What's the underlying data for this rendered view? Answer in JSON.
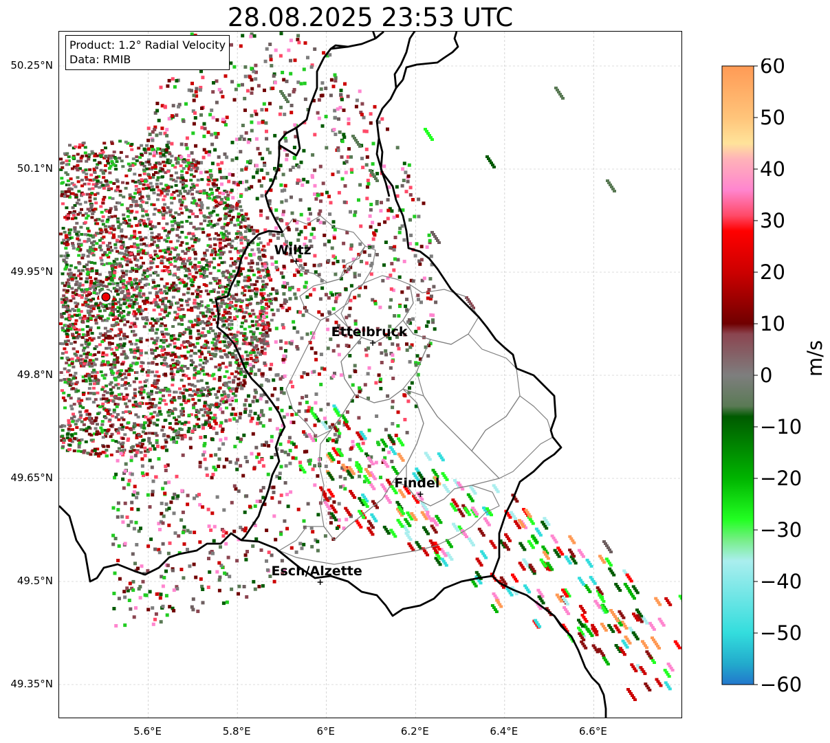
{
  "title": "28.08.2025 23:53 UTC",
  "info": {
    "product": "Product: 1.2° Radial Velocity",
    "data": "Data: RMIB"
  },
  "map": {
    "lon_range": [
      5.4,
      6.8
    ],
    "lat_range": [
      49.3,
      50.3
    ],
    "lat_ticks": [
      {
        "value": 50.25,
        "label": "50.25°N"
      },
      {
        "value": 50.1,
        "label": "50.1°N"
      },
      {
        "value": 49.95,
        "label": "49.95°N"
      },
      {
        "value": 49.8,
        "label": "49.8°N"
      },
      {
        "value": 49.65,
        "label": "49.65°N"
      },
      {
        "value": 49.5,
        "label": "49.5°N"
      },
      {
        "value": 49.35,
        "label": "49.35°N"
      }
    ],
    "lon_ticks": [
      {
        "value": 5.6,
        "label": "5.6°E"
      },
      {
        "value": 5.8,
        "label": "5.8°E"
      },
      {
        "value": 6.0,
        "label": "6°E"
      },
      {
        "value": 6.2,
        "label": "6.2°E"
      },
      {
        "value": 6.4,
        "label": "6.4°E"
      },
      {
        "value": 6.6,
        "label": "6.6°E"
      }
    ],
    "gridlines": true,
    "radar_site": {
      "lon": 5.505,
      "lat": 49.914
    },
    "cities": [
      {
        "name": "Wiltz",
        "lon": 5.932,
        "lat": 49.966
      },
      {
        "name": "Ettelbruck",
        "lon": 6.104,
        "lat": 49.847
      },
      {
        "name": "Findel",
        "lon": 6.211,
        "lat": 49.627
      },
      {
        "name": "Esch/Alzette",
        "lon": 5.986,
        "lat": 49.499
      }
    ]
  },
  "colorbar": {
    "unit": "m/s",
    "min": -60,
    "max": 60,
    "ticks": [
      60,
      50,
      40,
      30,
      20,
      10,
      0,
      -10,
      -20,
      -30,
      -40,
      -50,
      -60
    ],
    "tick_labels": [
      "60",
      "50",
      "40",
      "30",
      "20",
      "10",
      "0",
      "−10",
      "−20",
      "−30",
      "−40",
      "−50",
      "−60"
    ],
    "stops": [
      {
        "v": 60,
        "color": "#ff9a55"
      },
      {
        "v": 50,
        "color": "#ffc47a"
      },
      {
        "v": 45,
        "color": "#ffe39a"
      },
      {
        "v": 42,
        "color": "#ffb3b8"
      },
      {
        "v": 36,
        "color": "#ff86cf"
      },
      {
        "v": 31,
        "color": "#ff4a68"
      },
      {
        "v": 28,
        "color": "#ff0000"
      },
      {
        "v": 20,
        "color": "#cc0000"
      },
      {
        "v": 10,
        "color": "#700000"
      },
      {
        "v": 8,
        "color": "#8b4550"
      },
      {
        "v": 0,
        "color": "#7e7e7e"
      },
      {
        "v": -6,
        "color": "#5a7a55"
      },
      {
        "v": -8,
        "color": "#005a00"
      },
      {
        "v": -20,
        "color": "#00b400"
      },
      {
        "v": -28,
        "color": "#22ff22"
      },
      {
        "v": -32,
        "color": "#77ee88"
      },
      {
        "v": -36,
        "color": "#aaeeee"
      },
      {
        "v": -50,
        "color": "#33dddd"
      },
      {
        "v": -56,
        "color": "#22aacc"
      },
      {
        "v": -60,
        "color": "#2277cc"
      }
    ]
  }
}
